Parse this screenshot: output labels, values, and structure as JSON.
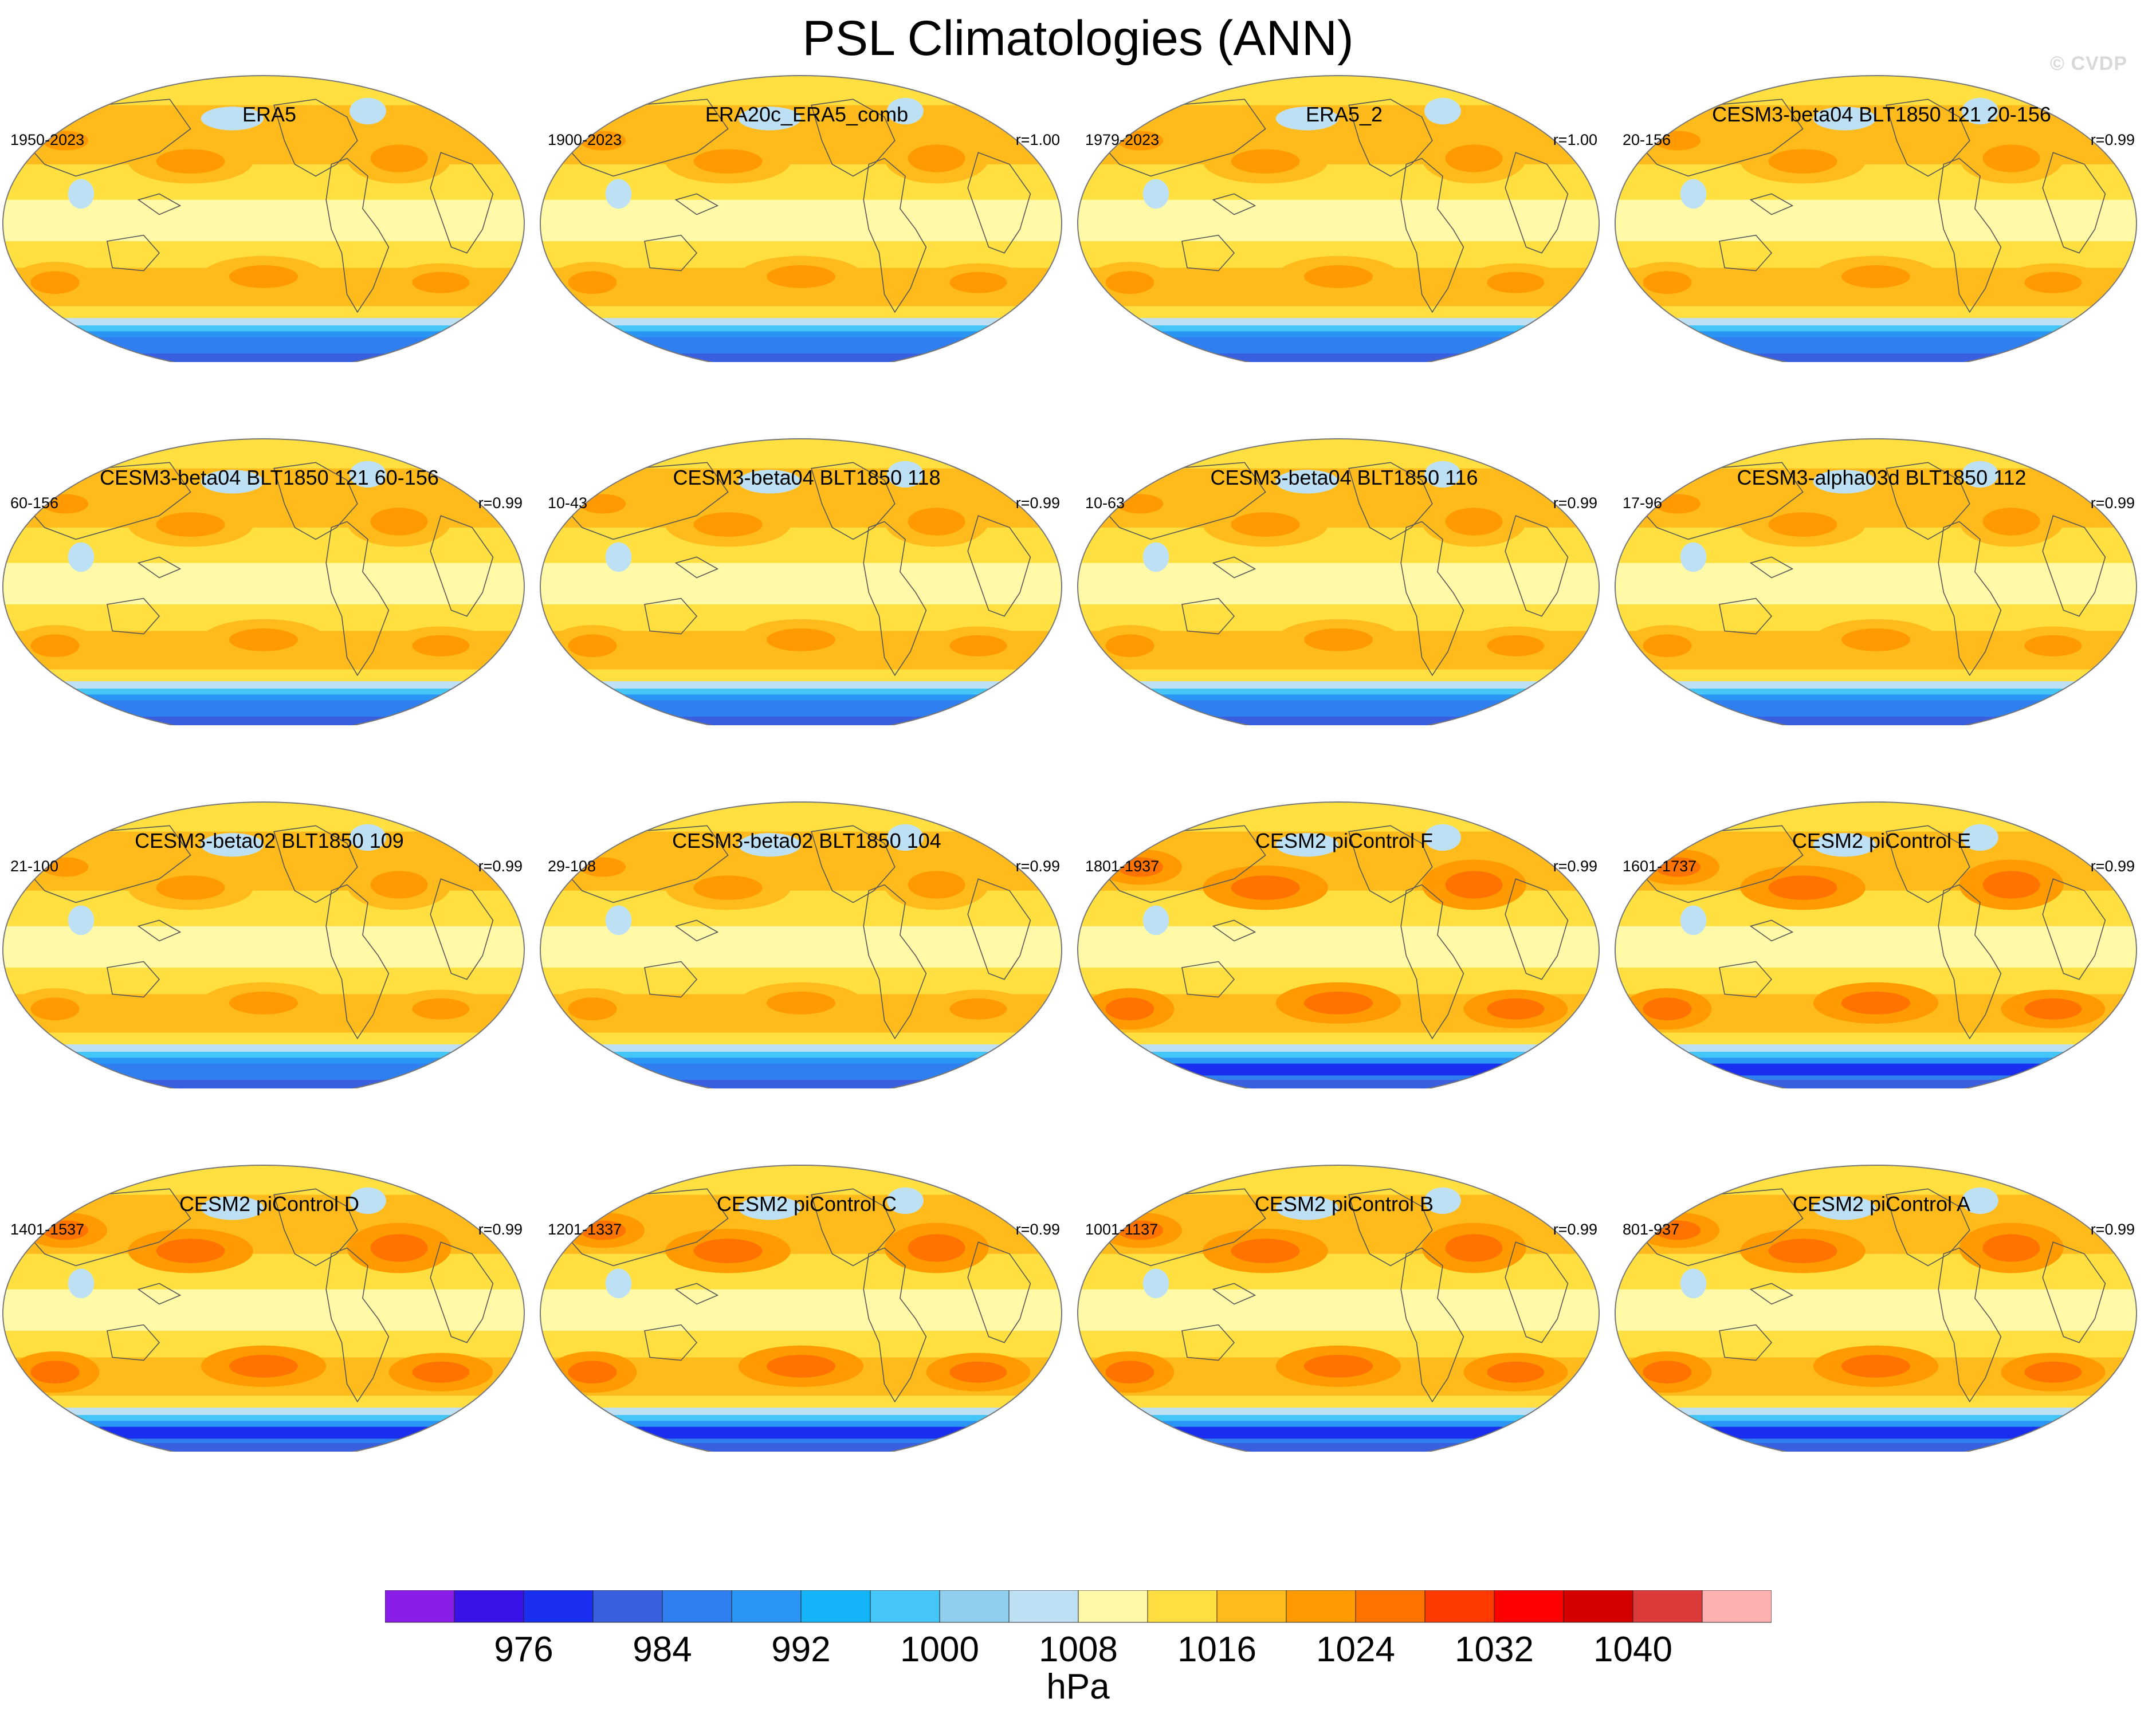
{
  "title": "PSL Climatologies (ANN)",
  "watermark": "© CVDP",
  "panels": [
    {
      "title": "ERA5",
      "period": "1950-2023",
      "corr": "",
      "variant": 0
    },
    {
      "title": "ERA20c_ERA5_comb",
      "period": "1900-2023",
      "corr": "r=1.00",
      "variant": 0
    },
    {
      "title": "ERA5_2",
      "period": "1979-2023",
      "corr": "r=1.00",
      "variant": 0
    },
    {
      "title": "CESM3-beta04 BLT1850 121 20-156",
      "period": "20-156",
      "corr": "r=0.99",
      "variant": 1
    },
    {
      "title": "CESM3-beta04 BLT1850 121 60-156",
      "period": "60-156",
      "corr": "r=0.99",
      "variant": 1
    },
    {
      "title": "CESM3-beta04 BLT1850 118",
      "period": "10-43",
      "corr": "r=0.99",
      "variant": 1
    },
    {
      "title": "CESM3-beta04 BLT1850 116",
      "period": "10-63",
      "corr": "r=0.99",
      "variant": 1
    },
    {
      "title": "CESM3-alpha03d BLT1850 112",
      "period": "17-96",
      "corr": "r=0.99",
      "variant": 1
    },
    {
      "title": "CESM3-beta02 BLT1850 109",
      "period": "21-100",
      "corr": "r=0.99",
      "variant": 1
    },
    {
      "title": "CESM3-beta02 BLT1850 104",
      "period": "29-108",
      "corr": "r=0.99",
      "variant": 1
    },
    {
      "title": "CESM2 piControl F",
      "period": "1801-1937",
      "corr": "r=0.99",
      "variant": 2
    },
    {
      "title": "CESM2 piControl E",
      "period": "1601-1737",
      "corr": "r=0.99",
      "variant": 2
    },
    {
      "title": "CESM2 piControl D",
      "period": "1401-1537",
      "corr": "r=0.99",
      "variant": 2
    },
    {
      "title": "CESM2 piControl C",
      "period": "1201-1337",
      "corr": "r=0.99",
      "variant": 2
    },
    {
      "title": "CESM2 piControl B",
      "period": "1001-1137",
      "corr": "r=0.99",
      "variant": 2
    },
    {
      "title": "CESM2 piControl A",
      "period": "801-937",
      "corr": "r=0.99",
      "variant": 2
    }
  ],
  "colorbar": {
    "colors": [
      "#8a1ee8",
      "#3a12e8",
      "#1a2ef0",
      "#3a5ee0",
      "#2f7ff0",
      "#2a95f5",
      "#14b5f8",
      "#44c6f8",
      "#90cfee",
      "#bde0f5",
      "#fff9a8",
      "#ffe040",
      "#ffbb1c",
      "#ff9a00",
      "#ff7400",
      "#ff3a00",
      "#ff0000",
      "#d40000",
      "#dc3a3a",
      "#ffb0b0"
    ],
    "labels": [
      "976",
      "984",
      "992",
      "1000",
      "1008",
      "1016",
      "1024",
      "1032",
      "1040"
    ],
    "label_boundaries": [
      2,
      4,
      6,
      8,
      10,
      12,
      14,
      16,
      18
    ],
    "units": "hPa"
  }
}
